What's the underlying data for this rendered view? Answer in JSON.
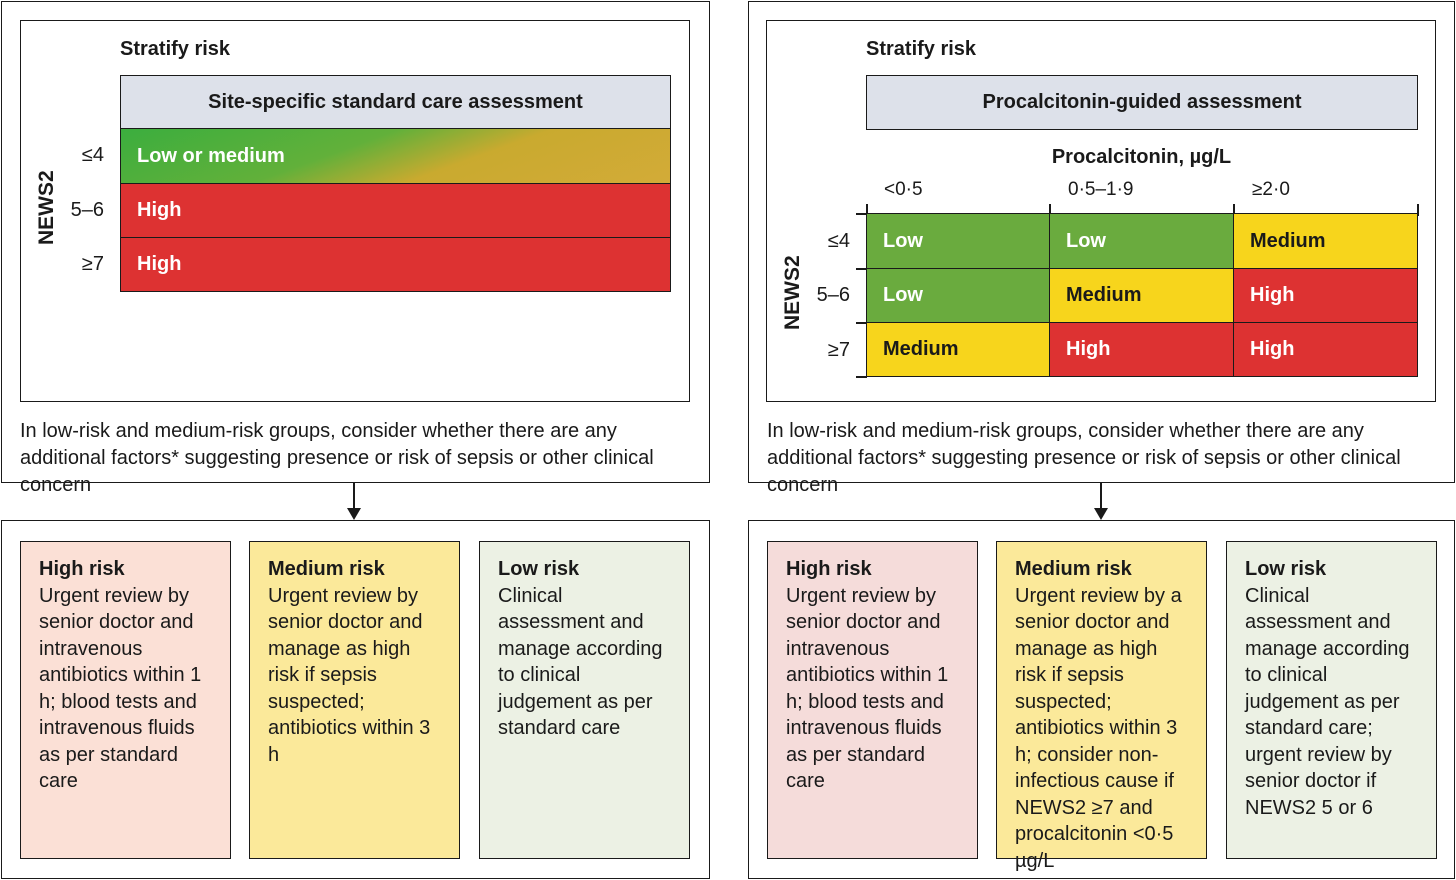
{
  "left_panel": {
    "title": "Stratify risk",
    "header": "Site-specific standard care assessment",
    "axis_label": "NEWS2",
    "rows": [
      {
        "score": "≤4",
        "risk": "Low or medium"
      },
      {
        "score": "5–6",
        "risk": "High"
      },
      {
        "score": "≥7",
        "risk": "High"
      }
    ],
    "note": "In low-risk and medium-risk groups, consider whether there are any additional factors* suggesting presence or risk of sepsis or other clinical concern"
  },
  "right_panel": {
    "title": "Stratify risk",
    "header": "Procalcitonin-guided assessment",
    "col_axis_label": "Procalcitonin, µg/L",
    "columns": [
      "<0·5",
      "0·5–1·9",
      "≥2·0"
    ],
    "axis_label": "NEWS2",
    "row_labels": [
      "≤4",
      "5–6",
      "≥7"
    ],
    "grid": [
      [
        "Low",
        "Low",
        "Medium"
      ],
      [
        "Low",
        "Medium",
        "High"
      ],
      [
        "Medium",
        "High",
        "High"
      ]
    ],
    "note": "In low-risk and medium-risk groups, consider whether there are any additional factors* suggesting presence or risk of sepsis or other clinical concern"
  },
  "left_actions": [
    {
      "title": "High risk",
      "text": "Urgent review by senior doctor and intravenous antibiotics within 1 h; blood tests and intravenous fluids as per standard care"
    },
    {
      "title": "Medium risk",
      "text": "Urgent review by senior doctor and manage as high risk if sepsis suspected; antibiotics within 3 h"
    },
    {
      "title": "Low risk",
      "text": "Clinical assessment and manage according to clinical judgement as per standard care"
    }
  ],
  "right_actions": [
    {
      "title": "High risk",
      "text": "Urgent review by senior doctor and intravenous antibiotics within 1 h; blood tests and intravenous fluids as per standard care"
    },
    {
      "title": "Medium risk",
      "text": "Urgent review by a senior doctor and manage as high risk if sepsis suspected; antibiotics within 3 h; consider non-infectious cause if NEWS2 ≥7 and procalcitonin <0·5 µg/L"
    },
    {
      "title": "Low risk",
      "text": "Clinical assessment and manage according to clinical judgement as per standard care; urgent review by senior doctor if NEWS2 5 or 6"
    }
  ],
  "colors": {
    "low": "#6aab3e",
    "medium": "#f7d51c",
    "high": "#dd3232",
    "header_bg": "#dde1ea"
  }
}
